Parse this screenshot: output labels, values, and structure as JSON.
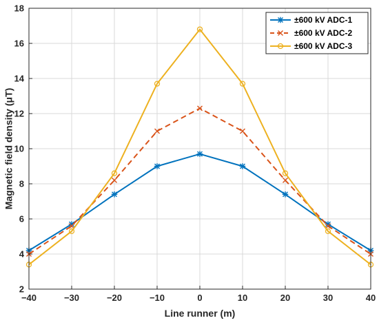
{
  "chart_data": {
    "type": "line",
    "title": "",
    "xlabel": "Line runner (m)",
    "ylabel": "Magnetic field density (μT)",
    "x": [
      -40,
      -30,
      -20,
      -10,
      0,
      10,
      20,
      30,
      40
    ],
    "xlim": [
      -40,
      40
    ],
    "ylim": [
      2,
      18
    ],
    "xticks": [
      "−40",
      "−30",
      "−20",
      "−10",
      "0",
      "10",
      "20",
      "30",
      "40"
    ],
    "xtick_values": [
      -40,
      -30,
      -20,
      -10,
      0,
      10,
      20,
      30,
      40
    ],
    "yticks": [
      "2",
      "4",
      "6",
      "8",
      "10",
      "12",
      "14",
      "16",
      "18"
    ],
    "ytick_values": [
      2,
      4,
      6,
      8,
      10,
      12,
      14,
      16,
      18
    ],
    "grid": true,
    "legend_position": "top-right",
    "series": [
      {
        "name": "±600 kV ADC-1",
        "color": "#0072BD",
        "line_style": "solid",
        "marker": "asterisk",
        "values": [
          4.2,
          5.7,
          7.4,
          9.0,
          9.7,
          9.0,
          7.4,
          5.7,
          4.2
        ]
      },
      {
        "name": "±600 kV ADC-2",
        "color": "#D95319",
        "line_style": "dashed",
        "marker": "x",
        "values": [
          4.0,
          5.6,
          8.2,
          11.0,
          12.3,
          11.0,
          8.2,
          5.6,
          4.0
        ]
      },
      {
        "name": "±600 kV ADC-3",
        "color": "#EDB120",
        "line_style": "solid",
        "marker": "circle",
        "values": [
          3.4,
          5.3,
          8.6,
          13.7,
          16.8,
          13.7,
          8.6,
          5.3,
          3.4
        ]
      }
    ]
  }
}
